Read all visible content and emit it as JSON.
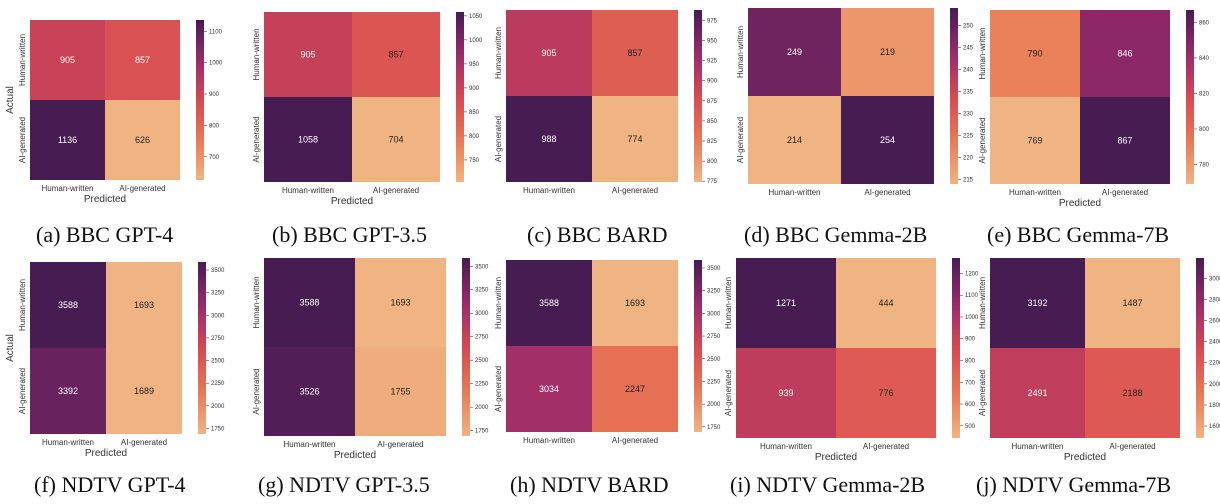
{
  "chart_data": [
    {
      "type": "heatmap",
      "caption": "(a) BBC GPT-4",
      "xlabel": "Predicted",
      "ylabel": "Actual",
      "x_categories": [
        "Human-written",
        "AI-generated"
      ],
      "y_categories": [
        "Human-written",
        "AI-generated"
      ],
      "values": [
        [
          905,
          857
        ],
        [
          1136,
          626
        ]
      ],
      "colorbar": {
        "min": 626,
        "max": 1136,
        "ticks": [
          700,
          800,
          900,
          1000,
          1100
        ]
      }
    },
    {
      "type": "heatmap",
      "caption": "(b) BBC GPT-3.5",
      "xlabel": "Predicted",
      "ylabel": "",
      "x_categories": [
        "Human-written",
        "AI-generated"
      ],
      "y_categories": [
        "Human-written",
        "AI-generated"
      ],
      "values": [
        [
          905,
          857
        ],
        [
          1058,
          704
        ]
      ],
      "colorbar": {
        "min": 704,
        "max": 1058,
        "ticks": [
          750,
          800,
          850,
          900,
          950,
          1000,
          1050
        ]
      }
    },
    {
      "type": "heatmap",
      "caption": "(c) BBC BARD",
      "xlabel": "",
      "ylabel": "",
      "x_categories": [
        "Human-written",
        "AI-generated"
      ],
      "y_categories": [
        "Human-written",
        "AI-generated"
      ],
      "values": [
        [
          905,
          857
        ],
        [
          988,
          774
        ]
      ],
      "colorbar": {
        "min": 774,
        "max": 988,
        "ticks": [
          775,
          800,
          825,
          850,
          875,
          900,
          925,
          950,
          975
        ]
      }
    },
    {
      "type": "heatmap",
      "caption": "(d) BBC Gemma-2B",
      "xlabel": "",
      "ylabel": "",
      "x_categories": [
        "Human-written",
        "AI-generated"
      ],
      "y_categories": [
        "Human-written",
        "AI-generated"
      ],
      "values": [
        [
          249,
          219
        ],
        [
          214,
          254
        ]
      ],
      "colorbar": {
        "min": 214,
        "max": 254,
        "ticks": [
          215,
          220,
          225,
          230,
          235,
          240,
          245,
          250
        ]
      }
    },
    {
      "type": "heatmap",
      "caption": "(e) BBC Gemma-7B",
      "xlabel": "Predicted",
      "ylabel": "",
      "x_categories": [
        "Human-written",
        "AI-generated"
      ],
      "y_categories": [
        "Human-written",
        "AI-generated"
      ],
      "values": [
        [
          790,
          846
        ],
        [
          769,
          867
        ]
      ],
      "colorbar": {
        "min": 769,
        "max": 867,
        "ticks": [
          780,
          800,
          820,
          840,
          860
        ]
      }
    },
    {
      "type": "heatmap",
      "caption": "(f) NDTV GPT-4",
      "xlabel": "Predicted",
      "ylabel": "Actual",
      "x_categories": [
        "Human-written",
        "AI-generated"
      ],
      "y_categories": [
        "Human-written",
        "AI-generated"
      ],
      "values": [
        [
          3588,
          1693
        ],
        [
          3392,
          1689
        ]
      ],
      "colorbar": {
        "min": 1689,
        "max": 3588,
        "ticks": [
          1750,
          2000,
          2250,
          2500,
          2750,
          3000,
          3250,
          3500
        ]
      }
    },
    {
      "type": "heatmap",
      "caption": "(g) NDTV GPT-3.5",
      "xlabel": "Predicted",
      "ylabel": "",
      "x_categories": [
        "Human-written",
        "AI-generated"
      ],
      "y_categories": [
        "Human-written",
        "AI-generated"
      ],
      "values": [
        [
          3588,
          1693
        ],
        [
          3526,
          1755
        ]
      ],
      "colorbar": {
        "min": 1693,
        "max": 3588,
        "ticks": [
          1750,
          2000,
          2250,
          2500,
          2750,
          3000,
          3250,
          3500
        ]
      }
    },
    {
      "type": "heatmap",
      "caption": "(h) NDTV BARD",
      "xlabel": "",
      "ylabel": "",
      "x_categories": [
        "Human-written",
        "AI-generated"
      ],
      "y_categories": [
        "Human-written",
        "AI-generated"
      ],
      "values": [
        [
          3588,
          1693
        ],
        [
          3034,
          2247
        ]
      ],
      "colorbar": {
        "min": 1693,
        "max": 3588,
        "ticks": [
          1750,
          2000,
          2250,
          2500,
          2750,
          3000,
          3250,
          3500
        ]
      }
    },
    {
      "type": "heatmap",
      "caption": "(i) NDTV Gemma-2B",
      "xlabel": "Predicted",
      "ylabel": "",
      "x_categories": [
        "Human-written",
        "AI-generated"
      ],
      "y_categories": [
        "Human-written",
        "AI-generated"
      ],
      "values": [
        [
          1271,
          444
        ],
        [
          939,
          776
        ]
      ],
      "colorbar": {
        "min": 444,
        "max": 1271,
        "ticks": [
          500,
          600,
          700,
          800,
          900,
          1000,
          1100,
          1200
        ]
      }
    },
    {
      "type": "heatmap",
      "caption": "(j) NDTV Gemma-7B",
      "xlabel": "Predicted",
      "ylabel": "",
      "x_categories": [
        "Human-written",
        "AI-generated"
      ],
      "y_categories": [
        "Human-written",
        "AI-generated"
      ],
      "values": [
        [
          3192,
          1487
        ],
        [
          2491,
          2188
        ]
      ],
      "colorbar": {
        "min": 1487,
        "max": 3192,
        "ticks": [
          1600,
          1800,
          2000,
          2200,
          2400,
          2600,
          2800,
          3000
        ]
      }
    }
  ]
}
